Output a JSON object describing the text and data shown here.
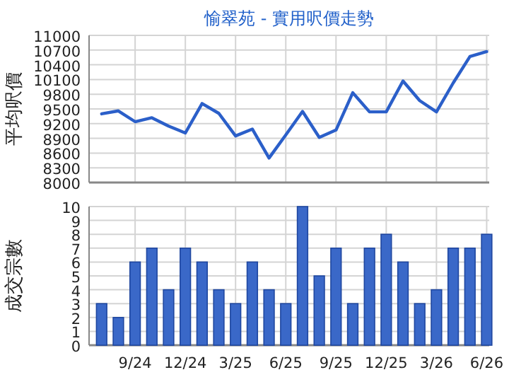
{
  "chart_data": [
    {
      "type": "line",
      "title": "愉翠苑 - 實用呎價走勢",
      "ylabel": "平均呎價",
      "color": "#2b5fc9",
      "grid": true,
      "categories": [
        null,
        null,
        null,
        null,
        null,
        null,
        null,
        null,
        null,
        null,
        null,
        null,
        null,
        null,
        null,
        null,
        null,
        null,
        null,
        null,
        null,
        null,
        null,
        null
      ],
      "values": [
        9400,
        9460,
        9240,
        9320,
        9150,
        9010,
        9610,
        9410,
        8950,
        9090,
        8500,
        8970,
        9450,
        8920,
        9070,
        9830,
        9440,
        9440,
        10070,
        9670,
        9440,
        10030,
        10570,
        10670
      ],
      "ylim": [
        8000,
        11000
      ],
      "yticks": [
        8000,
        8300,
        8600,
        8900,
        9200,
        9500,
        9800,
        10100,
        10400,
        10700,
        11000
      ]
    },
    {
      "type": "bar",
      "ylabel": "成交宗數",
      "color": "#3a68c8",
      "grid": true,
      "categories": [
        null,
        null,
        "9/24",
        null,
        null,
        "12/24",
        null,
        null,
        "3/25",
        null,
        null,
        "6/25",
        null,
        null,
        "9/25",
        null,
        null,
        "12/25",
        null,
        null,
        "3/26",
        null,
        null,
        "6/26"
      ],
      "values": [
        3,
        2,
        6,
        7,
        4,
        7,
        6,
        4,
        3,
        6,
        4,
        3,
        10,
        5,
        7,
        3,
        7,
        8,
        6,
        3,
        4,
        7,
        7,
        8
      ],
      "ylim": [
        0,
        10
      ],
      "yticks": [
        0,
        1,
        2,
        3,
        4,
        5,
        6,
        7,
        8,
        9,
        10
      ]
    }
  ]
}
